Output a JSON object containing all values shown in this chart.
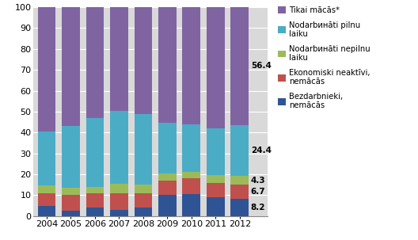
{
  "years": [
    2004,
    2005,
    2006,
    2007,
    2008,
    2009,
    2010,
    2011,
    2012
  ],
  "bezdarbnieki": [
    5.0,
    2.5,
    4.0,
    3.0,
    4.0,
    10.0,
    10.5,
    9.0,
    8.2
  ],
  "ekon_neaktivi": [
    6.0,
    7.5,
    7.0,
    8.0,
    7.0,
    7.0,
    7.5,
    7.0,
    6.7
  ],
  "nodarbinati_nepilnu": [
    3.5,
    3.5,
    3.0,
    4.5,
    4.0,
    3.5,
    3.0,
    3.5,
    4.3
  ],
  "nodarbinati_pilnu": [
    26.0,
    29.5,
    33.0,
    35.0,
    34.0,
    24.0,
    23.0,
    22.5,
    24.4
  ],
  "tikai_macas": [
    59.5,
    57.0,
    53.0,
    49.5,
    51.0,
    55.5,
    56.0,
    58.0,
    56.4
  ],
  "color_bezdarbnieki": "#2F5496",
  "color_ekon_neaktivi": "#C0504D",
  "color_nodarbinati_nepilnu": "#9BBB59",
  "color_nodarbinati_pilnu": "#4BACC6",
  "color_tikai_macas": "#8064A2",
  "label_bezdarbnieki": "Bezdarbnieki,\nnemācās",
  "label_ekon_neaktivi": "Ekonomiski neaktīvi,\nnemācās",
  "label_nodarbinati_nepilnu": "Nodarbинāti nepilnu\nlaiku",
  "label_nodarbinati_pilnu": "Nodarbинāti pilnu\nlaiku",
  "label_tikai_macas": "Tikai mācās*",
  "ann_56": {
    "value": "56.4",
    "color": "#000000"
  },
  "ann_244": {
    "value": "24.4",
    "color": "#000000"
  },
  "ann_43": {
    "value": "4.3",
    "color": "#000000"
  },
  "ann_67": {
    "value": "6.7",
    "color": "#000000"
  },
  "ann_82": {
    "value": "8.2",
    "color": "#000000"
  },
  "ylim": [
    0,
    100
  ],
  "yticks": [
    0,
    10,
    20,
    30,
    40,
    50,
    60,
    70,
    80,
    90,
    100
  ],
  "bg_color": "#FFFFFF",
  "plot_bg_color": "#D9D9D9",
  "grid_color": "#FFFFFF",
  "bar_width": 0.75
}
